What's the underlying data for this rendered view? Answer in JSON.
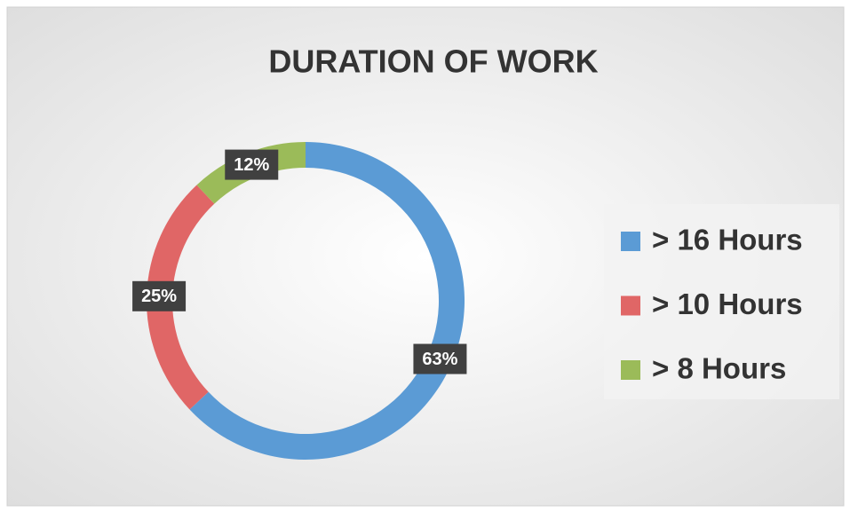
{
  "chart_data": {
    "type": "donut",
    "title": "DURATION OF WORK",
    "categories": [
      "> 16 Hours",
      "> 10 Hours",
      "> 8 Hours"
    ],
    "values": [
      63,
      25,
      12
    ],
    "value_labels": [
      "63%",
      "25%",
      "12%"
    ],
    "colors": [
      "#5b9bd5",
      "#e06666",
      "#9bbb59"
    ],
    "legend": "right"
  }
}
